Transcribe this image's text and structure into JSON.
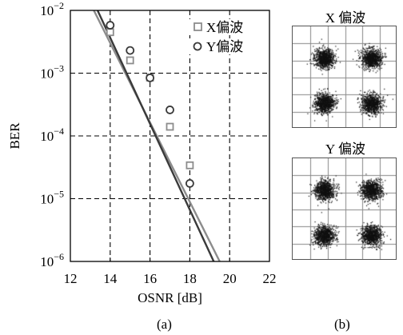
{
  "chart_data": {
    "type": "line",
    "yscale": "log",
    "xlabel": "OSNR [dB]",
    "ylabel": "BER",
    "xlim": [
      12,
      22
    ],
    "ylim": [
      1e-06,
      0.01
    ],
    "xticks": [
      12,
      14,
      16,
      18,
      20,
      22
    ],
    "xtick_labels": [
      "12",
      "14",
      "16",
      "18",
      "20",
      "22"
    ],
    "yticks": [
      1e-06,
      1e-05,
      0.0001,
      0.001,
      0.01
    ],
    "ytick_labels": [
      {
        "base": "10",
        "exp": "−6"
      },
      {
        "base": "10",
        "exp": "−5"
      },
      {
        "base": "10",
        "exp": "−4"
      },
      {
        "base": "10",
        "exp": "−3"
      },
      {
        "base": "10",
        "exp": "−2"
      }
    ],
    "grid": "dashed",
    "legend_position": "top-right",
    "series": [
      {
        "name": "X偏波",
        "marker": "square",
        "color": "#8c8c8c",
        "x": [
          14,
          15,
          16,
          17,
          18
        ],
        "y": [
          0.0045,
          0.0016,
          0.00085,
          0.00014,
          3.4e-05
        ],
        "fit_x": [
          13.0,
          19.5
        ],
        "fit_y": [
          0.013,
          1e-06
        ]
      },
      {
        "name": "Y偏波",
        "marker": "circle",
        "color": "#3a3a3a",
        "x": [
          14,
          15,
          16,
          17,
          18
        ],
        "y": [
          0.0058,
          0.0023,
          0.00084,
          0.00026,
          1.75e-05
        ],
        "fit_x": [
          13.2,
          19.2
        ],
        "fit_y": [
          0.013,
          1e-06
        ]
      }
    ]
  },
  "constellations": [
    {
      "title": "X 偏波"
    },
    {
      "title": "Y 偏波"
    }
  ],
  "captions": {
    "a": "(a)",
    "b": "(b)"
  }
}
